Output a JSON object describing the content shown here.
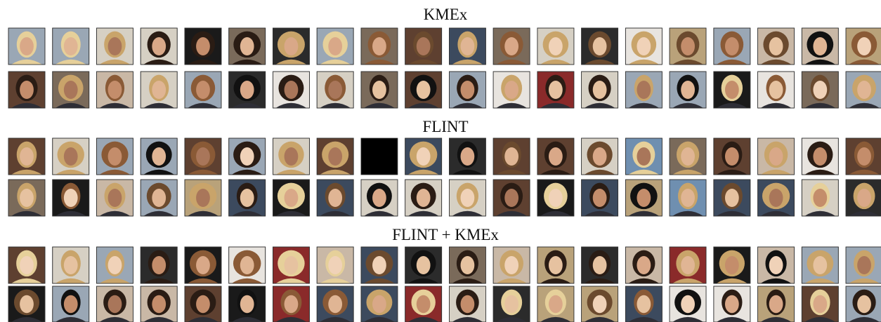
{
  "sections": [
    {
      "title": "KMEx"
    },
    {
      "title": "FLINT"
    },
    {
      "title": "FLINT + KMEx"
    }
  ]
}
